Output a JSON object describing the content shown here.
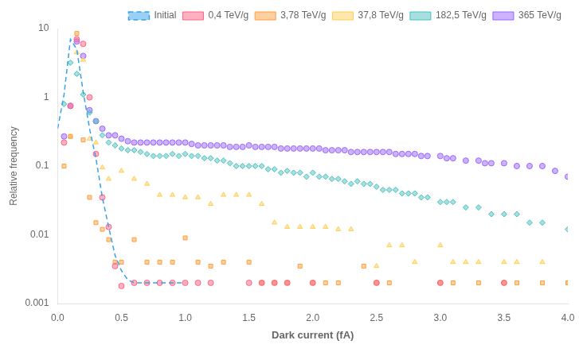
{
  "chart_data": {
    "type": "scatter",
    "xlabel": "Dark current (fA)",
    "ylabel": "Relative frequency",
    "xlim": [
      0,
      4
    ],
    "ylim": [
      0.001,
      10
    ],
    "log": "y",
    "xticks": [
      {
        "value": 0,
        "label": "0.0"
      },
      0.5,
      {
        "value": 1,
        "label": "1.0"
      },
      1.5,
      {
        "value": 2,
        "label": "2.0"
      },
      2.5,
      {
        "value": 3,
        "label": "3.0"
      },
      3.5,
      {
        "value": 4,
        "label": "4.0"
      }
    ],
    "yticks": [
      0.001,
      0.01,
      0.1,
      1,
      10
    ],
    "grid": false,
    "legend": "upper right",
    "series": [
      {
        "name": "Initial",
        "type": "line",
        "line_style": "dashed",
        "x": [
          0.0,
          0.05,
          0.1,
          0.15,
          0.2,
          0.25,
          0.3,
          0.35,
          0.4,
          0.45,
          0.5,
          0.55,
          0.6,
          0.65,
          0.7,
          0.75,
          0.8,
          0.85,
          0.9,
          0.95,
          1.0
        ],
        "values": [
          0.35,
          1.1,
          7.0,
          5.0,
          1.2,
          0.35,
          0.13,
          0.035,
          0.013,
          0.005,
          0.003,
          0.0022,
          0.002,
          0.002,
          0.002,
          0.002,
          0.002,
          0.002,
          0.002,
          0.002,
          0.002
        ]
      },
      {
        "name": "0,4 TeV/g",
        "type": "scatter",
        "marker": "circle",
        "x": [
          0.05,
          0.1,
          0.15,
          0.2,
          0.25,
          0.3,
          0.35,
          0.4,
          0.45,
          0.5,
          0.6,
          0.7,
          0.8,
          0.9,
          1.0,
          1.1,
          1.2,
          1.5,
          1.6,
          1.7,
          1.8,
          2.0,
          2.5,
          3.0,
          3.5
        ],
        "values": [
          0.22,
          0.75,
          7.0,
          6.0,
          1.0,
          0.15,
          0.035,
          0.013,
          0.0035,
          0.0018,
          0.002,
          0.002,
          0.002,
          0.002,
          0.002,
          0.002,
          0.002,
          0.002,
          0.002,
          0.002,
          0.002,
          0.002,
          0.002,
          0.002,
          0.002
        ]
      },
      {
        "name": "3,78 TeV/g",
        "type": "scatter",
        "marker": "square",
        "x": [
          0.05,
          0.1,
          0.15,
          0.2,
          0.25,
          0.3,
          0.35,
          0.4,
          0.45,
          0.5,
          0.6,
          0.7,
          0.8,
          0.9,
          1.0,
          1.1,
          1.2,
          1.3,
          1.5,
          1.6,
          1.7,
          1.8,
          1.9,
          2.0,
          2.1,
          2.2,
          2.4,
          2.5,
          2.6,
          3.0,
          3.1,
          3.3,
          3.5,
          3.6,
          3.8,
          4.0
        ],
        "values": [
          0.1,
          0.27,
          8.5,
          0.24,
          0.035,
          0.015,
          0.012,
          0.0085,
          0.004,
          0.004,
          0.0085,
          0.004,
          0.004,
          0.004,
          0.009,
          0.004,
          0.0035,
          0.004,
          0.004,
          0.002,
          0.002,
          0.002,
          0.0035,
          0.002,
          0.002,
          0.002,
          0.0035,
          0.002,
          0.002,
          0.002,
          0.002,
          0.002,
          0.002,
          0.002,
          0.002,
          0.002
        ]
      },
      {
        "name": "37,8 TeV/g",
        "type": "scatter",
        "marker": "triangle",
        "x": [
          0.1,
          0.15,
          0.2,
          0.25,
          0.3,
          0.35,
          0.4,
          0.5,
          0.6,
          0.7,
          0.8,
          0.9,
          1.0,
          1.1,
          1.2,
          1.3,
          1.4,
          1.5,
          1.6,
          1.7,
          1.8,
          1.9,
          2.0,
          2.1,
          2.2,
          2.3,
          2.5,
          2.6,
          2.7,
          2.8,
          3.0,
          3.1,
          3.2,
          3.3,
          3.5,
          3.6,
          3.8,
          4.0
        ],
        "values": [
          0.27,
          4.5,
          3.5,
          0.25,
          0.22,
          0.095,
          0.065,
          0.085,
          0.065,
          0.055,
          0.038,
          0.038,
          0.035,
          0.035,
          0.028,
          0.038,
          0.038,
          0.038,
          0.028,
          0.015,
          0.013,
          0.013,
          0.013,
          0.013,
          0.012,
          0.012,
          0.0035,
          0.007,
          0.007,
          0.004,
          0.007,
          0.004,
          0.004,
          0.004,
          0.004,
          0.004,
          0.004,
          0.002
        ]
      },
      {
        "name": "182,5 TeV/g",
        "type": "scatter",
        "marker": "diamond",
        "x": [
          0.05,
          0.1,
          0.15,
          0.2,
          0.25,
          0.3,
          0.35,
          0.4,
          0.45,
          0.5,
          0.55,
          0.6,
          0.65,
          0.7,
          0.75,
          0.8,
          0.85,
          0.9,
          0.95,
          1.0,
          1.05,
          1.1,
          1.15,
          1.2,
          1.25,
          1.3,
          1.35,
          1.4,
          1.45,
          1.5,
          1.55,
          1.6,
          1.65,
          1.7,
          1.75,
          1.8,
          1.85,
          1.9,
          1.95,
          2.0,
          2.05,
          2.1,
          2.15,
          2.2,
          2.25,
          2.3,
          2.35,
          2.4,
          2.45,
          2.5,
          2.55,
          2.6,
          2.65,
          2.7,
          2.75,
          2.8,
          2.85,
          2.9,
          3.0,
          3.05,
          3.1,
          3.2,
          3.3,
          3.4,
          3.5,
          3.6,
          3.7,
          3.8,
          4.0
        ],
        "values": [
          0.8,
          3.2,
          2.2,
          1.1,
          0.6,
          0.45,
          0.28,
          0.22,
          0.2,
          0.18,
          0.17,
          0.17,
          0.16,
          0.15,
          0.14,
          0.14,
          0.14,
          0.15,
          0.14,
          0.15,
          0.14,
          0.14,
          0.13,
          0.13,
          0.12,
          0.12,
          0.11,
          0.1,
          0.1,
          0.1,
          0.1,
          0.1,
          0.09,
          0.09,
          0.08,
          0.085,
          0.08,
          0.08,
          0.07,
          0.08,
          0.07,
          0.07,
          0.065,
          0.065,
          0.06,
          0.055,
          0.06,
          0.055,
          0.055,
          0.05,
          0.045,
          0.045,
          0.045,
          0.04,
          0.04,
          0.04,
          0.035,
          0.035,
          0.03,
          0.03,
          0.03,
          0.025,
          0.025,
          0.02,
          0.02,
          0.02,
          0.015,
          0.015,
          0.012
        ]
      },
      {
        "name": "365 TeV/g",
        "type": "scatter",
        "marker": "circle",
        "x": [
          0.05,
          0.1,
          0.15,
          0.2,
          0.25,
          0.3,
          0.35,
          0.4,
          0.45,
          0.5,
          0.55,
          0.6,
          0.65,
          0.7,
          0.75,
          0.8,
          0.85,
          0.9,
          0.95,
          1.0,
          1.05,
          1.1,
          1.15,
          1.2,
          1.25,
          1.3,
          1.35,
          1.4,
          1.45,
          1.5,
          1.55,
          1.6,
          1.65,
          1.7,
          1.75,
          1.8,
          1.85,
          1.9,
          1.95,
          2.0,
          2.05,
          2.1,
          2.15,
          2.2,
          2.25,
          2.3,
          2.35,
          2.4,
          2.45,
          2.5,
          2.55,
          2.6,
          2.65,
          2.7,
          2.75,
          2.8,
          2.85,
          2.9,
          3.0,
          3.05,
          3.1,
          3.2,
          3.3,
          3.35,
          3.4,
          3.5,
          3.6,
          3.7,
          3.8,
          3.9,
          4.0
        ],
        "values": [
          0.27,
          0.75,
          6.5,
          4.0,
          0.65,
          0.45,
          0.35,
          0.28,
          0.28,
          0.25,
          0.23,
          0.22,
          0.22,
          0.22,
          0.22,
          0.22,
          0.22,
          0.22,
          0.22,
          0.22,
          0.21,
          0.2,
          0.2,
          0.2,
          0.2,
          0.2,
          0.19,
          0.19,
          0.19,
          0.2,
          0.19,
          0.19,
          0.19,
          0.19,
          0.18,
          0.18,
          0.18,
          0.18,
          0.18,
          0.18,
          0.18,
          0.17,
          0.17,
          0.17,
          0.17,
          0.16,
          0.16,
          0.16,
          0.16,
          0.16,
          0.16,
          0.16,
          0.15,
          0.15,
          0.15,
          0.15,
          0.14,
          0.14,
          0.14,
          0.13,
          0.13,
          0.12,
          0.12,
          0.11,
          0.11,
          0.11,
          0.1,
          0.1,
          0.1,
          0.085,
          0.07
        ]
      }
    ]
  }
}
